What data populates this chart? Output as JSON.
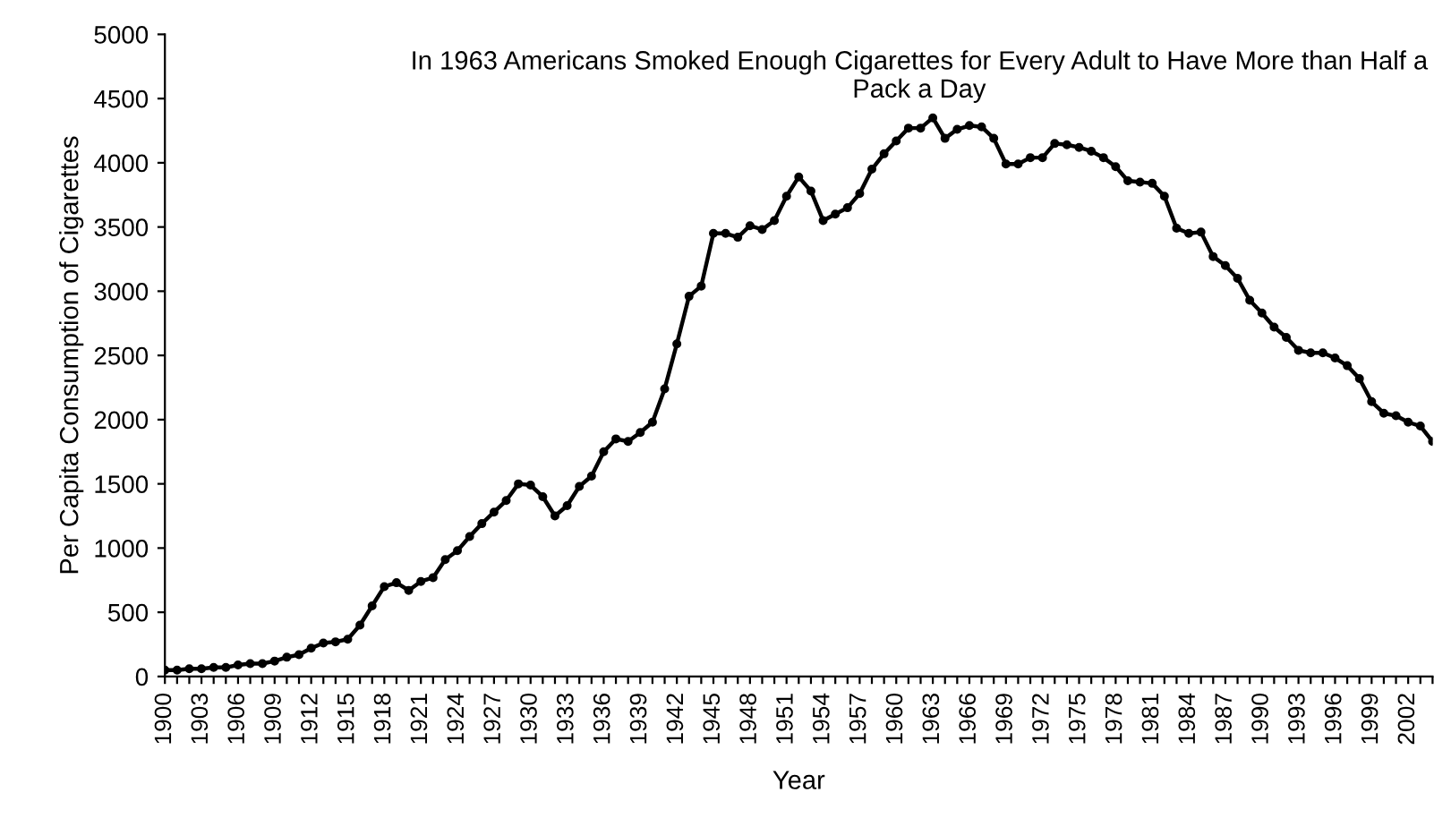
{
  "chart_data": {
    "type": "line",
    "title": "In 1963 Americans Smoked Enough Cigarettes for Every Adult to Have More than Half a Pack a Day",
    "xlabel": "Year",
    "ylabel": "Per Capita Consumption of Cigarettes",
    "x": [
      1900,
      1901,
      1902,
      1903,
      1904,
      1905,
      1906,
      1907,
      1908,
      1909,
      1910,
      1911,
      1912,
      1913,
      1914,
      1915,
      1916,
      1917,
      1918,
      1919,
      1920,
      1921,
      1922,
      1923,
      1924,
      1925,
      1926,
      1927,
      1928,
      1929,
      1930,
      1931,
      1932,
      1933,
      1934,
      1935,
      1936,
      1937,
      1938,
      1939,
      1940,
      1941,
      1942,
      1943,
      1944,
      1945,
      1946,
      1947,
      1948,
      1949,
      1950,
      1951,
      1952,
      1953,
      1954,
      1955,
      1956,
      1957,
      1958,
      1959,
      1960,
      1961,
      1962,
      1963,
      1964,
      1965,
      1966,
      1967,
      1968,
      1969,
      1970,
      1971,
      1972,
      1973,
      1974,
      1975,
      1976,
      1977,
      1978,
      1979,
      1980,
      1981,
      1982,
      1983,
      1984,
      1985,
      1986,
      1987,
      1988,
      1989,
      1990,
      1991,
      1992,
      1993,
      1994,
      1995,
      1996,
      1997,
      1998,
      1999,
      2000,
      2001,
      2002,
      2003,
      2004
    ],
    "series": [
      {
        "color": "#000000",
        "values": [
          50,
          50,
          60,
          60,
          70,
          70,
          90,
          100,
          100,
          120,
          150,
          170,
          220,
          260,
          270,
          290,
          400,
          550,
          700,
          730,
          670,
          740,
          770,
          910,
          980,
          1090,
          1190,
          1280,
          1370,
          1500,
          1490,
          1400,
          1250,
          1330,
          1480,
          1560,
          1750,
          1850,
          1830,
          1900,
          1980,
          2240,
          2590,
          2960,
          3040,
          3450,
          3450,
          3420,
          3510,
          3480,
          3550,
          3740,
          3890,
          3780,
          3550,
          3600,
          3650,
          3760,
          3950,
          4070,
          4170,
          4270,
          4270,
          4350,
          4190,
          4260,
          4290,
          4280,
          4190,
          3990,
          3990,
          4040,
          4040,
          4150,
          4140,
          4120,
          4090,
          4040,
          3970,
          3860,
          3850,
          3840,
          3740,
          3490,
          3450,
          3460,
          3270,
          3200,
          3100,
          2930,
          2830,
          2720,
          2640,
          2540,
          2520,
          2520,
          2480,
          2420,
          2320,
          2140,
          2050,
          2030,
          1980,
          1950,
          1830
        ]
      }
    ],
    "xlim": [
      1900,
      2004
    ],
    "ylim": [
      0,
      5000
    ],
    "yticks": [
      0,
      500,
      1000,
      1500,
      2000,
      2500,
      3000,
      3500,
      4000,
      4500,
      5000
    ],
    "xticks": [
      1900,
      {
        "value": 1901,
        "label": null
      },
      {
        "value": 1902,
        "label": null
      },
      1903,
      {
        "value": 1904,
        "label": null
      },
      {
        "value": 1905,
        "label": null
      },
      1906,
      {
        "value": 1907,
        "label": null
      },
      {
        "value": 1908,
        "label": null
      },
      1909,
      {
        "value": 1910,
        "label": null
      },
      {
        "value": 1911,
        "label": null
      },
      1912,
      {
        "value": 1913,
        "label": null
      },
      {
        "value": 1914,
        "label": null
      },
      1915,
      {
        "value": 1916,
        "label": null
      },
      {
        "value": 1917,
        "label": null
      },
      1918,
      {
        "value": 1919,
        "label": null
      },
      {
        "value": 1920,
        "label": null
      },
      1921,
      {
        "value": 1922,
        "label": null
      },
      {
        "value": 1923,
        "label": null
      },
      1924,
      {
        "value": 1925,
        "label": null
      },
      {
        "value": 1926,
        "label": null
      },
      1927,
      {
        "value": 1928,
        "label": null
      },
      {
        "value": 1929,
        "label": null
      },
      1930,
      {
        "value": 1931,
        "label": null
      },
      {
        "value": 1932,
        "label": null
      },
      1933,
      {
        "value": 1934,
        "label": null
      },
      {
        "value": 1935,
        "label": null
      },
      1936,
      {
        "value": 1937,
        "label": null
      },
      {
        "value": 1938,
        "label": null
      },
      1939,
      {
        "value": 1940,
        "label": null
      },
      {
        "value": 1941,
        "label": null
      },
      1942,
      {
        "value": 1943,
        "label": null
      },
      {
        "value": 1944,
        "label": null
      },
      1945,
      {
        "value": 1946,
        "label": null
      },
      {
        "value": 1947,
        "label": null
      },
      1948,
      {
        "value": 1949,
        "label": null
      },
      {
        "value": 1950,
        "label": null
      },
      1951,
      {
        "value": 1952,
        "label": null
      },
      {
        "value": 1953,
        "label": null
      },
      1954,
      {
        "value": 1955,
        "label": null
      },
      {
        "value": 1956,
        "label": null
      },
      1957,
      {
        "value": 1958,
        "label": null
      },
      {
        "value": 1959,
        "label": null
      },
      1960,
      {
        "value": 1961,
        "label": null
      },
      {
        "value": 1962,
        "label": null
      },
      1963,
      {
        "value": 1964,
        "label": null
      },
      {
        "value": 1965,
        "label": null
      },
      1966,
      {
        "value": 1967,
        "label": null
      },
      {
        "value": 1968,
        "label": null
      },
      1969,
      {
        "value": 1970,
        "label": null
      },
      {
        "value": 1971,
        "label": null
      },
      1972,
      {
        "value": 1973,
        "label": null
      },
      {
        "value": 1974,
        "label": null
      },
      1975,
      {
        "value": 1976,
        "label": null
      },
      {
        "value": 1977,
        "label": null
      },
      1978,
      {
        "value": 1979,
        "label": null
      },
      {
        "value": 1980,
        "label": null
      },
      1981,
      {
        "value": 1982,
        "label": null
      },
      {
        "value": 1983,
        "label": null
      },
      1984,
      {
        "value": 1985,
        "label": null
      },
      {
        "value": 1986,
        "label": null
      },
      1987,
      {
        "value": 1988,
        "label": null
      },
      {
        "value": 1989,
        "label": null
      },
      1990,
      {
        "value": 1991,
        "label": null
      },
      {
        "value": 1992,
        "label": null
      },
      1993,
      {
        "value": 1994,
        "label": null
      },
      {
        "value": 1995,
        "label": null
      },
      1996,
      {
        "value": 1997,
        "label": null
      },
      {
        "value": 1998,
        "label": null
      },
      1999,
      {
        "value": 2000,
        "label": null
      },
      {
        "value": 2001,
        "label": null
      },
      2002,
      {
        "value": 2003,
        "label": null
      },
      {
        "value": 2004,
        "label": null
      }
    ],
    "marker": "circle",
    "line_style": "solid",
    "grid": false,
    "legend": false
  }
}
